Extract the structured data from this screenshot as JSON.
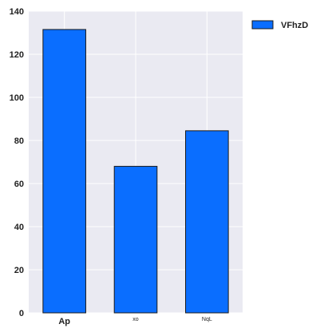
{
  "chart_data": {
    "type": "bar",
    "categories": [
      "Ap",
      "xo",
      "NqL"
    ],
    "series": [
      {
        "name": "VFhzD",
        "values": [
          131.5,
          68,
          84.5
        ]
      }
    ],
    "ylim": [
      0,
      140
    ],
    "yticks": [
      0,
      20,
      40,
      60,
      80,
      100,
      120,
      140
    ],
    "grid": true,
    "legend_position": "top-right",
    "colors": {
      "bar": "#0a6eff",
      "bar_edge": "#1a1a1a",
      "plot_background": "#eaeaf2",
      "grid": "#ffffff"
    }
  }
}
